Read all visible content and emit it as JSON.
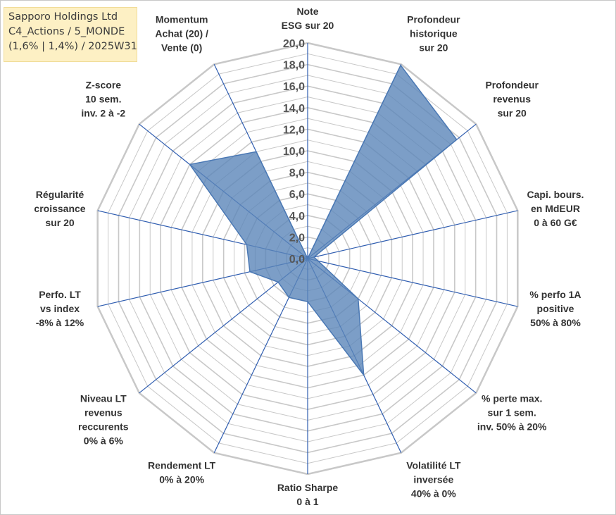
{
  "title_box": {
    "line1": "Sapporo Holdings Ltd",
    "line2": "C4_Actions / 5_MONDE",
    "line3": "(1,6% | 1,4%) / 2025W31",
    "background": "#fdf0c4"
  },
  "chart_data": {
    "type": "radar",
    "range": [
      0,
      20
    ],
    "ticks": [
      "0,0",
      "2,0",
      "4,0",
      "6,0",
      "8,0",
      "10,0",
      "12,0",
      "14,0",
      "16,0",
      "18,0",
      "20,0"
    ],
    "grid": true,
    "axes": [
      [
        "Note",
        "ESG sur 20"
      ],
      [
        "Profondeur",
        "historique",
        "sur 20"
      ],
      [
        "Profondeur",
        "revenus",
        "sur 20"
      ],
      [
        "Capi. bours.",
        "en MdEUR",
        "0 à 60 G€"
      ],
      [
        "% perfo 1A",
        "positive",
        "50% à 80%"
      ],
      [
        "% perte max.",
        "sur 1 sem.",
        "inv. 50% à 20%"
      ],
      [
        "Volatilité LT",
        "inversée",
        "40% à 0%"
      ],
      [
        "Ratio Sharpe",
        "0 à 1"
      ],
      [
        "Rendement LT",
        "0% à 20%"
      ],
      [
        "Niveau LT",
        "revenus",
        "reccurents",
        "0% à 6%"
      ],
      [
        "Perfo. LT",
        "vs index",
        "-8% à 12%"
      ],
      [
        "Régularité",
        "croissance",
        "sur 20"
      ],
      [
        "Z-score",
        "10 sem.",
        "inv. 2 à -2"
      ],
      [
        "Momentum",
        "Achat (20) /",
        "Vente (0)"
      ]
    ],
    "series": [
      {
        "values": [
          0,
          19.9,
          17.7,
          0.6,
          1.0,
          6.0,
          12.0,
          4.0,
          4.0,
          3.5,
          5.5,
          5.8,
          14.0,
          11.0
        ],
        "fill": "#5b86b9",
        "fill_opacity": 0.8,
        "stroke": "#4a78b4"
      }
    ],
    "colors": {
      "grid": "#c8c8c8",
      "spokes": "#2f5db0"
    }
  }
}
